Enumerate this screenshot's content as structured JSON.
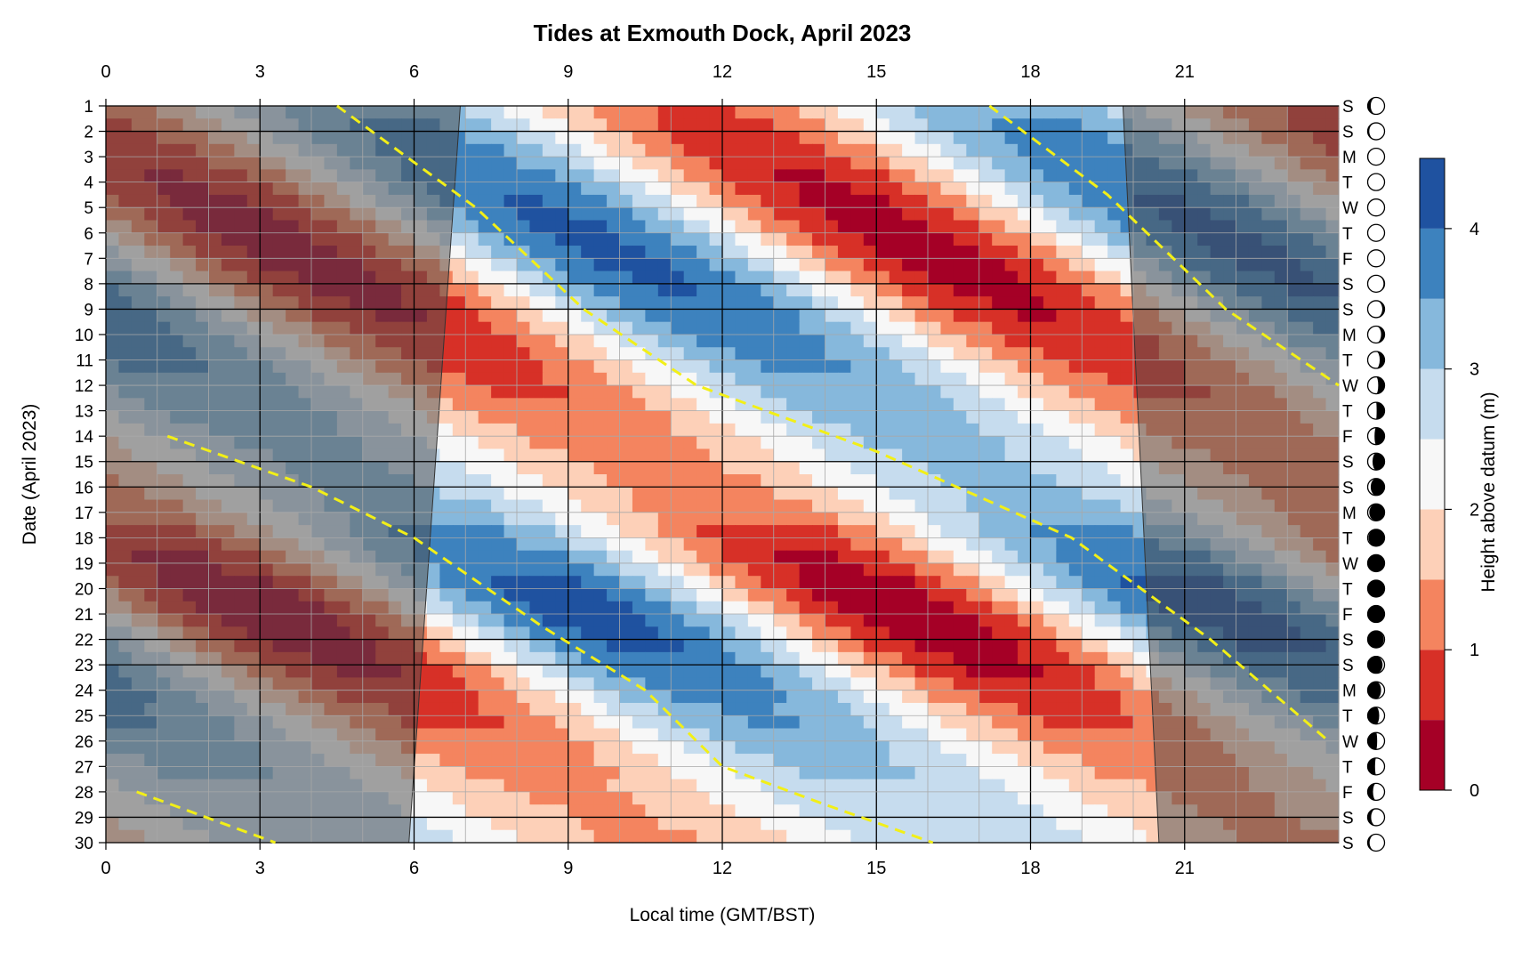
{
  "chart_data": {
    "type": "heatmap",
    "title": "Tides at Exmouth Dock, April 2023",
    "xlabel": "Local time (GMT/BST)",
    "ylabel": "Date (April 2023)",
    "xlim": [
      0,
      24
    ],
    "ylim": [
      1,
      30
    ],
    "x_ticks": [
      0,
      3,
      6,
      9,
      12,
      15,
      18,
      21
    ],
    "y_ticks": [
      1,
      2,
      3,
      4,
      5,
      6,
      7,
      8,
      9,
      10,
      11,
      12,
      13,
      14,
      15,
      16,
      17,
      18,
      19,
      20,
      21,
      22,
      23,
      24,
      25,
      26,
      27,
      28,
      29,
      30
    ],
    "colorbar": {
      "label": "Height above datum (m)",
      "ticks": [
        0,
        1,
        2,
        3,
        4
      ],
      "range": [
        0,
        4.5
      ],
      "levels": [
        0,
        0.5,
        1,
        1.5,
        2,
        2.5,
        3,
        3.5,
        4,
        4.5
      ],
      "colors": [
        "#a50026",
        "#d73027",
        "#f4845f",
        "#fdd0b8",
        "#f7f7f7",
        "#c6dcee",
        "#86b8dc",
        "#3d82be",
        "#1f52a0"
      ]
    },
    "day_letters": [
      "S",
      "S",
      "M",
      "T",
      "W",
      "T",
      "F",
      "S",
      "S",
      "M",
      "T",
      "W",
      "T",
      "F",
      "S",
      "S",
      "M",
      "T",
      "W",
      "T",
      "F",
      "S",
      "S",
      "M",
      "T",
      "W",
      "T",
      "F",
      "S",
      "S"
    ],
    "moon_phase_fraction": [
      0.36,
      0.4,
      0.44,
      0.47,
      0.5,
      0.52,
      0.55,
      0.58,
      0.62,
      0.65,
      0.68,
      0.71,
      0.74,
      0.78,
      0.82,
      0.86,
      0.9,
      0.93,
      0.97,
      1.0,
      0.03,
      0.07,
      0.11,
      0.15,
      0.19,
      0.23,
      0.27,
      0.31,
      0.35,
      0.39
    ],
    "tide_model": {
      "period_hours": 12.42,
      "mean_level_m": 2.2,
      "first_high_water_hour": 5.0,
      "daily_shift_hours": 0.84,
      "amplitude_by_day_m": [
        1.3,
        1.45,
        1.6,
        1.75,
        1.85,
        1.9,
        1.9,
        1.85,
        1.75,
        1.6,
        1.45,
        1.3,
        1.15,
        1.0,
        0.9,
        0.95,
        1.15,
        1.5,
        1.8,
        2.0,
        2.05,
        1.95,
        1.8,
        1.6,
        1.35,
        1.15,
        0.95,
        0.8,
        0.75,
        0.8
      ]
    },
    "high_water_trend_lines": [
      {
        "points": [
          [
            4.5,
            1
          ],
          [
            7.2,
            5
          ],
          [
            9.3,
            9
          ],
          [
            11.5,
            12
          ],
          [
            15,
            14.6
          ],
          [
            18.8,
            18
          ],
          [
            21.5,
            22
          ],
          [
            23.8,
            26
          ]
        ]
      },
      {
        "points": [
          [
            17.2,
            1
          ],
          [
            19.5,
            4.5
          ],
          [
            21.8,
            9
          ],
          [
            24,
            12
          ]
        ]
      },
      {
        "points": [
          [
            1.2,
            14
          ],
          [
            4.0,
            16
          ],
          [
            6.0,
            18
          ],
          [
            8.5,
            21.5
          ],
          [
            10.5,
            24
          ],
          [
            12.0,
            27
          ],
          [
            14.0,
            28.5
          ],
          [
            16.1,
            30
          ]
        ]
      },
      {
        "points": [
          [
            0.6,
            28
          ],
          [
            3.3,
            30
          ]
        ]
      }
    ],
    "night_shading": {
      "color": "#505050",
      "opacity": 0.52,
      "sunset": [
        {
          "day": 1,
          "hour": 19.8
        },
        {
          "day": 30,
          "hour": 20.5
        }
      ],
      "sunrise": [
        {
          "day": 1,
          "hour": 6.9
        },
        {
          "day": 30,
          "hour": 5.9
        }
      ]
    },
    "grid": true
  }
}
